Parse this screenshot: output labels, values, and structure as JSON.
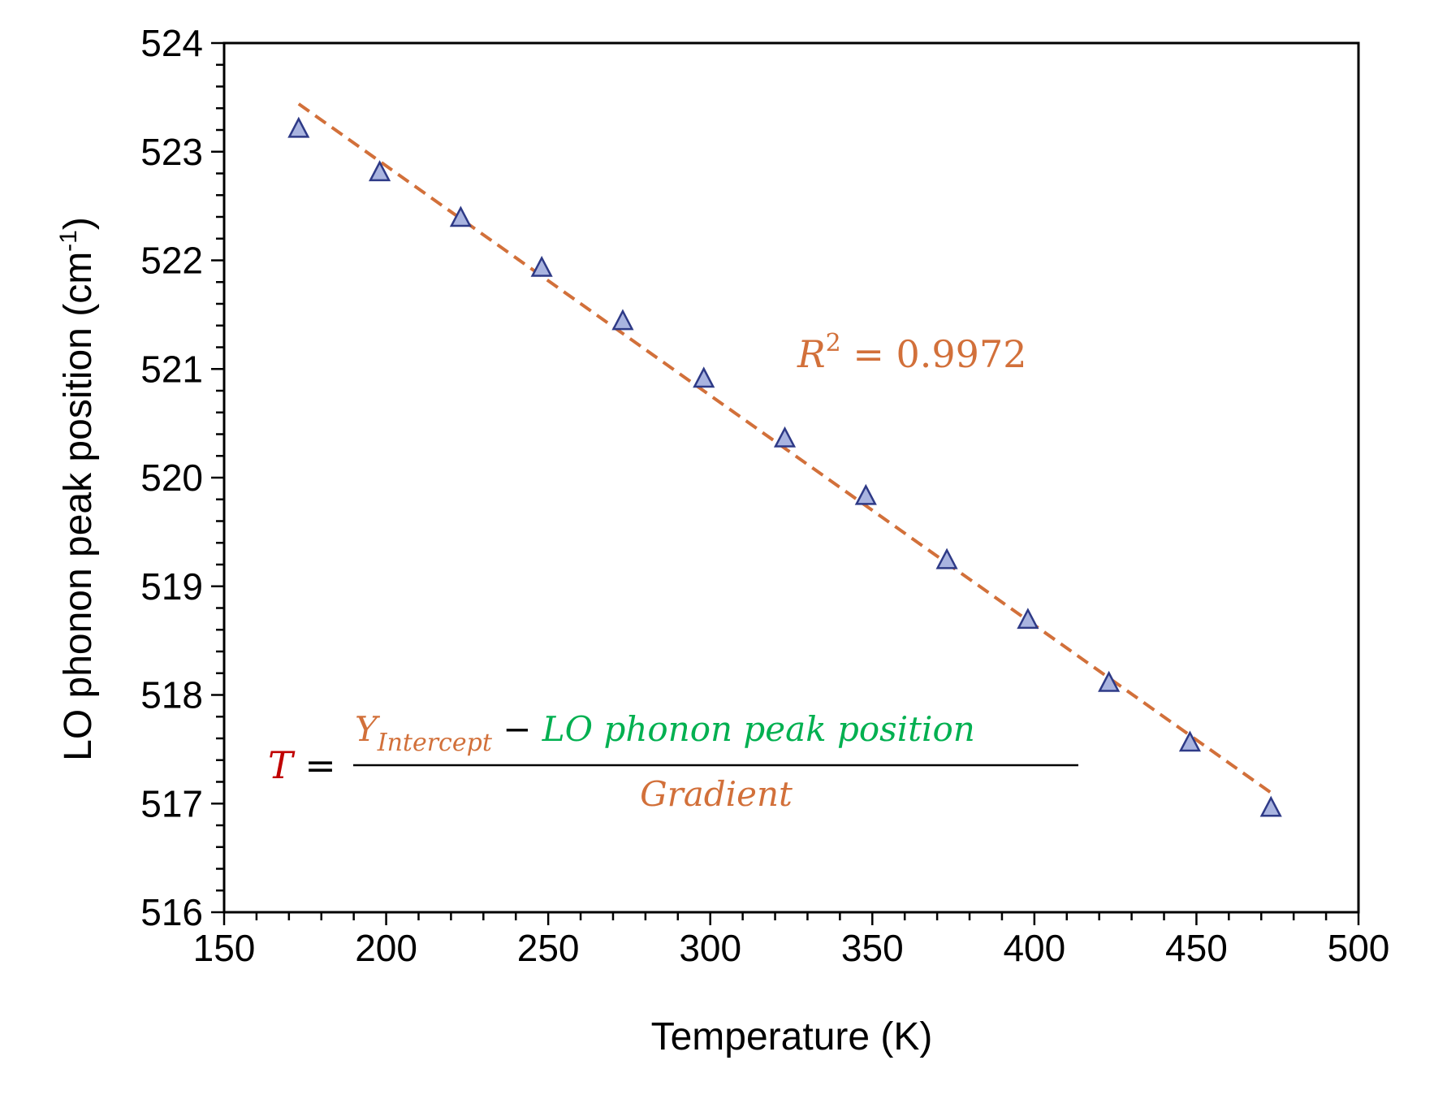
{
  "chart_data": {
    "type": "scatter",
    "title": "",
    "xlabel": "Temperature (K)",
    "ylabel_main": "LO phonon peak position (cm",
    "ylabel_sup": "-1",
    "ylabel_close": ")",
    "xlim": [
      150,
      500
    ],
    "ylim": [
      516,
      524
    ],
    "x_major_step": 50,
    "x_minor_step": 10,
    "y_major_step": 1,
    "y_minor_step": 0.2,
    "x_ticks": [
      "150",
      "200",
      "250",
      "300",
      "350",
      "400",
      "450",
      "500"
    ],
    "y_ticks": [
      "516",
      "517",
      "518",
      "519",
      "520",
      "521",
      "522",
      "523",
      "524"
    ],
    "grid": false,
    "series": [
      {
        "marker": "triangle",
        "color": "#2E3A87",
        "fill": "#A9B4E0",
        "x": [
          173,
          198,
          223,
          248,
          273,
          298,
          323,
          348,
          373,
          398,
          423,
          448,
          473
        ],
        "y": [
          523.2,
          522.8,
          522.38,
          521.92,
          521.43,
          520.9,
          520.35,
          519.82,
          519.23,
          518.68,
          518.1,
          517.55,
          516.95
        ]
      }
    ],
    "trendline": {
      "style": "dashed",
      "color": "#D2703A",
      "x": [
        173,
        473
      ],
      "y": [
        523.44,
        517.1
      ]
    },
    "annotations": {
      "r2_label": "R",
      "r2_sup": "2",
      "r2_value": " = 0.9972",
      "formula_T": "T",
      "formula_eq": " = ",
      "formula_Y": "Y",
      "formula_sub": "Intercept",
      "formula_minus": " − ",
      "formula_lo": "LO phonon peak position",
      "formula_den": "Gradient"
    },
    "colors": {
      "T": "#C00000",
      "orange": "#D2703A",
      "green": "#00B050"
    }
  }
}
